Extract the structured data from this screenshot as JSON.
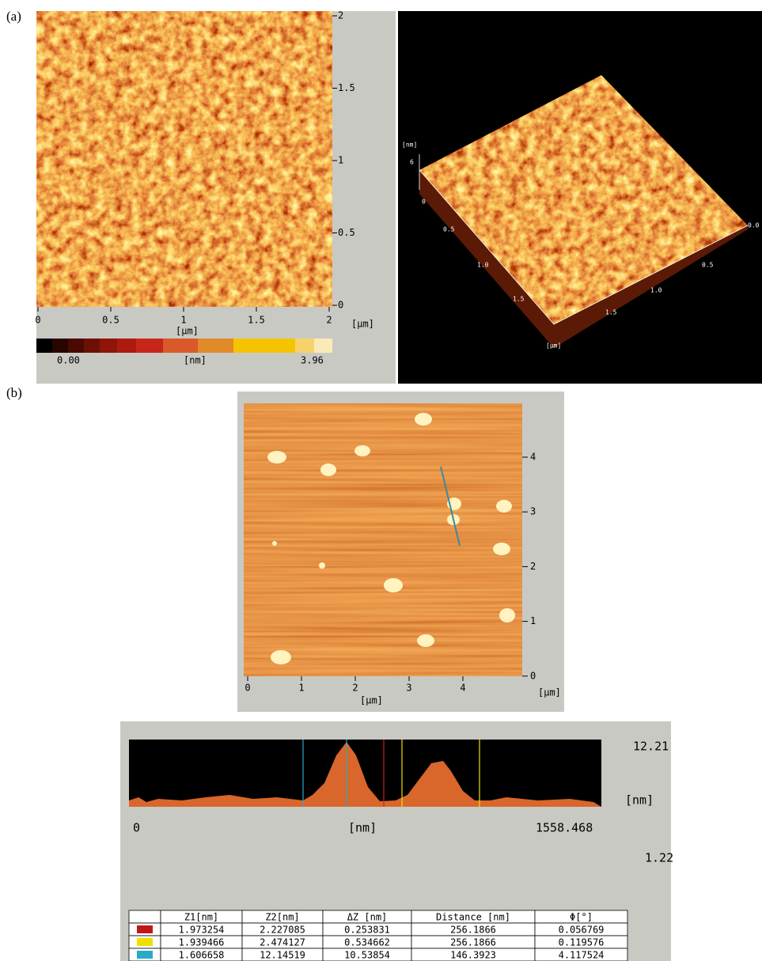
{
  "panel_a": {
    "label": "(a)",
    "image_2d": {
      "y_ticks": [
        "2",
        "1.5",
        "1",
        "0.5",
        "0"
      ],
      "x_ticks": [
        "0",
        "0.5",
        "1",
        "1.5",
        "2"
      ],
      "x_unit": "[μm]",
      "y_unit": "[μm]",
      "colorbar": {
        "min": "0.00",
        "unit": "[nm]",
        "max": "3.96"
      }
    },
    "image_3d": {
      "z_unit": "[nm]",
      "z_tick": "6",
      "left_ticks": [
        "0",
        "0.5",
        "1.0",
        "1.5"
      ],
      "left_unit": "[μm]",
      "right_ticks": [
        "0.0",
        "0.5",
        "1.0",
        "1.5"
      ]
    }
  },
  "panel_b": {
    "label": "(b)",
    "image": {
      "y_ticks": [
        "4",
        "3",
        "2",
        "1",
        "0"
      ],
      "x_ticks": [
        "0",
        "1",
        "2",
        "3",
        "4"
      ],
      "x_unit": "[μm]",
      "y_unit": "[μm]"
    },
    "profile": {
      "z_max": "12.21",
      "z_unit": "[nm]",
      "z_min": "1.22",
      "x_min": "0",
      "x_unit": "[nm]",
      "x_max": "1558.468"
    },
    "table": {
      "headers": [
        "Z1[nm]",
        "Z2[nm]",
        "ΔZ [nm]",
        "Distance [nm]",
        "Φ[°]"
      ],
      "rows": [
        [
          "1.973254",
          "2.227085",
          "0.253831",
          "256.1866",
          "0.056769"
        ],
        [
          "1.939466",
          "2.474127",
          "0.534662",
          "256.1866",
          "0.119576"
        ],
        [
          "1.606658",
          "12.14519",
          "10.53854",
          "146.3923",
          "4.117524"
        ]
      ]
    }
  }
}
